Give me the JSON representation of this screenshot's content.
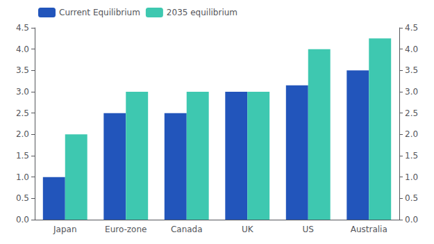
{
  "chart_data": {
    "type": "bar",
    "categories": [
      "Japan",
      "Euro-zone",
      "Canada",
      "UK",
      "US",
      "Australia"
    ],
    "series": [
      {
        "name": "Current Equilibrium",
        "color": "#2255bb",
        "values": [
          1.0,
          2.5,
          2.5,
          3.0,
          3.15,
          3.5
        ]
      },
      {
        "name": "2035 equilibrium",
        "color": "#3ec8b0",
        "values": [
          2.0,
          3.0,
          3.0,
          3.0,
          4.0,
          4.25
        ]
      }
    ],
    "ylim": [
      0,
      4.5
    ],
    "yticks": [
      {
        "value": 0,
        "label": "0.0"
      },
      0.5,
      {
        "value": 1,
        "label": "1.0"
      },
      1.5,
      {
        "value": 2,
        "label": "2.0"
      },
      2.5,
      {
        "value": 3,
        "label": "3.0"
      },
      3.5,
      {
        "value": 4,
        "label": "4.0"
      },
      4.5
    ],
    "y2lim": [
      0,
      4.5
    ],
    "y2ticks": [
      {
        "value": 0,
        "label": "0.0"
      },
      0.5,
      {
        "value": 1,
        "label": "1.0"
      },
      1.5,
      {
        "value": 2,
        "label": "2.0"
      },
      2.5,
      {
        "value": 3,
        "label": "3.0"
      },
      3.5,
      {
        "value": 4,
        "label": "4.0"
      },
      4.5
    ],
    "grid": false,
    "legend": "upper left"
  }
}
